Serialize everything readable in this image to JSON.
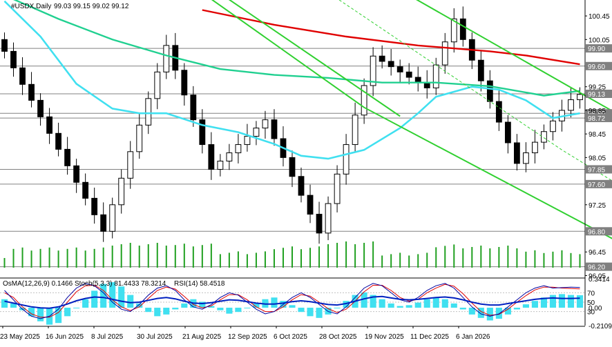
{
  "header": {
    "symbol": "#USDX,Daily",
    "ohlc": "99.03 99.15 99.02 99.12"
  },
  "indicator_header": {
    "osma": "OsMA(12,26,9) 0.1466",
    "stoch": "Stoch(5,3,3) 81.4433 78.3214",
    "rsi": "RSI(14) 58.4518"
  },
  "colors": {
    "candle": "#000000",
    "ma_red": "#e00000",
    "ma_teal": "#20d090",
    "ma_cyan": "#40e0f0",
    "channel": "#30d030",
    "trend_dark": "#208020",
    "level_line": "#808080",
    "volume": "#20a020",
    "osma_bars": "#40e0f0",
    "stoch_main": "#0000a0",
    "stoch_signal": "#e00000",
    "rsi": "#0020c0",
    "label_bg": "#808080",
    "label_text": "#ffffff"
  },
  "chart_data": [
    {
      "type": "line",
      "title": "#USDX,Daily",
      "ylim": [
        96.02,
        100.72
      ],
      "y_ticks": [
        {
          "value": 100.45,
          "label": "100.45"
        },
        {
          "value": 100.05,
          "label": "100.05"
        },
        {
          "value": 99.25,
          "label": "99.25"
        },
        {
          "value": 98.85,
          "label": "98.85"
        },
        {
          "value": 98.45,
          "label": "98.45"
        },
        {
          "value": 98.05,
          "label": "98.05"
        },
        {
          "value": 97.25,
          "label": "97.25"
        },
        {
          "value": 96.45,
          "label": "96.45"
        },
        {
          "value": 96.05,
          "label": "96.05"
        }
      ],
      "levels": [
        {
          "value": 99.9,
          "label": "99.90"
        },
        {
          "value": 99.6,
          "label": "99.60"
        },
        {
          "value": 99.13,
          "label": "99.13"
        },
        {
          "value": 98.8,
          "label": "98.80"
        },
        {
          "value": 98.72,
          "label": "98.72"
        },
        {
          "value": 97.85,
          "label": "97.85"
        },
        {
          "value": 97.6,
          "label": "97.60"
        },
        {
          "value": 96.8,
          "label": "96.80"
        },
        {
          "value": 96.2,
          "label": "96.20"
        }
      ],
      "x_ticks": [
        "23 May 2025",
        "16 Jun 2025",
        "8 Jul 2025",
        "30 Jul 2025",
        "21 Aug 2025",
        "12 Sep 2025",
        "6 Oct 2025",
        "28 Oct 2025",
        "19 Nov 2025",
        "11 Dec 2025",
        "6 Jan 2026"
      ],
      "closes": [
        99.85,
        99.57,
        99.29,
        99.02,
        98.74,
        98.46,
        98.19,
        97.91,
        97.63,
        97.36,
        97.08,
        96.8,
        97.25,
        97.7,
        98.15,
        98.6,
        99.05,
        99.5,
        99.95,
        99.53,
        99.11,
        98.69,
        98.27,
        97.85,
        97.99,
        98.13,
        98.27,
        98.41,
        98.55,
        98.69,
        98.37,
        98.05,
        97.73,
        97.41,
        97.09,
        96.77,
        97.27,
        97.77,
        98.27,
        98.77,
        99.27,
        99.77,
        99.68,
        99.59,
        99.5,
        99.41,
        99.32,
        99.23,
        99.62,
        100.01,
        100.4,
        100.05,
        99.7,
        99.35,
        99.0,
        98.65,
        98.3,
        97.95,
        98.13,
        98.31,
        98.49,
        98.67,
        98.85,
        99.03,
        99.12
      ],
      "series": [
        {
          "name": "",
          "role": "ma-red",
          "points": [
            [
              22,
              100.55
            ],
            [
              30,
              100.3
            ],
            [
              38,
              100.1
            ],
            [
              46,
              99.95
            ],
            [
              54,
              99.85
            ],
            [
              58,
              99.78
            ],
            [
              64,
              99.63
            ]
          ]
        },
        {
          "name": "",
          "role": "ma-teal",
          "points": [
            [
              0,
              100.8
            ],
            [
              6,
              100.4
            ],
            [
              12,
              100.05
            ],
            [
              18,
              99.78
            ],
            [
              24,
              99.55
            ],
            [
              30,
              99.45
            ],
            [
              36,
              99.4
            ],
            [
              42,
              99.32
            ],
            [
              48,
              99.32
            ],
            [
              54,
              99.26
            ],
            [
              60,
              99.1
            ],
            [
              64,
              99.18
            ]
          ]
        },
        {
          "name": "",
          "role": "ma-cyan",
          "points": [
            [
              0,
              100.7
            ],
            [
              4,
              100.1
            ],
            [
              8,
              99.3
            ],
            [
              12,
              98.88
            ],
            [
              15,
              98.8
            ],
            [
              18,
              98.8
            ],
            [
              22,
              98.6
            ],
            [
              26,
              98.48
            ],
            [
              30,
              98.28
            ],
            [
              33,
              98.08
            ],
            [
              36,
              98.03
            ],
            [
              40,
              98.18
            ],
            [
              44,
              98.55
            ],
            [
              46,
              98.8
            ],
            [
              48,
              99.08
            ],
            [
              52,
              99.25
            ],
            [
              55,
              99.2
            ],
            [
              58,
              99.02
            ],
            [
              61,
              98.72
            ],
            [
              64,
              98.8
            ]
          ]
        },
        {
          "name": "",
          "role": "channel",
          "points": [
            [
              45,
              100.8
            ],
            [
              64,
              99.15
            ],
            [
              82,
              97.6
            ]
          ]
        },
        {
          "name": "",
          "role": "channel",
          "points": [
            [
              21,
              100.95
            ],
            [
              40,
              98.9
            ],
            [
              76,
              96.0
            ]
          ]
        },
        {
          "name": "",
          "role": "channel",
          "points": [
            [
              19,
              101.35
            ],
            [
              44,
              98.75
            ]
          ]
        },
        {
          "name": "",
          "role": "trend-dashed",
          "points": [
            [
              35,
              100.95
            ],
            [
              62,
              98.18
            ],
            [
              81,
              96.4
            ]
          ]
        }
      ]
    },
    {
      "type": "bar",
      "title": "",
      "ylim": [
        -0.2109,
        0.3414
      ],
      "y_ticks": [
        {
          "value": 0.3414,
          "label": "0.3414"
        },
        {
          "value": 0.0,
          "label": "0.00"
        },
        {
          "value": -0.2109,
          "label": "-0.2109"
        }
      ],
      "rsi_stoch_ticks": [
        {
          "value": 70,
          "label": "70"
        },
        {
          "value": 50,
          "label": "50"
        },
        {
          "value": 30,
          "label": "30"
        }
      ],
      "osma_values": [
        0.1,
        0.05,
        -0.03,
        -0.1,
        -0.16,
        -0.2,
        -0.18,
        -0.1,
        0.0,
        0.1,
        0.2,
        0.28,
        0.3,
        0.25,
        0.15,
        0.05,
        -0.05,
        -0.1,
        -0.08,
        -0.02,
        0.05,
        0.1,
        0.07,
        0.02,
        -0.03,
        -0.07,
        -0.05,
        0.0,
        0.05,
        0.1,
        0.12,
        0.08,
        0.03,
        -0.05,
        -0.1,
        -0.12,
        -0.08,
        0.0,
        0.08,
        0.15,
        0.18,
        0.15,
        0.1,
        0.05,
        0.02,
        0.03,
        0.06,
        0.1,
        0.12,
        0.1,
        0.05,
        -0.02,
        -0.08,
        -0.12,
        -0.15,
        -0.13,
        -0.08,
        -0.02,
        0.04,
        0.08,
        0.12,
        0.15,
        0.16,
        0.15,
        0.1466
      ],
      "stoch_main": [
        75,
        55,
        35,
        20,
        15,
        20,
        35,
        60,
        80,
        90,
        85,
        70,
        50,
        35,
        30,
        45,
        65,
        80,
        85,
        75,
        55,
        40,
        35,
        45,
        60,
        70,
        65,
        50,
        35,
        25,
        30,
        45,
        60,
        70,
        60,
        45,
        30,
        25,
        40,
        60,
        80,
        90,
        85,
        70,
        55,
        50,
        60,
        75,
        85,
        90,
        80,
        60,
        40,
        25,
        20,
        25,
        40,
        55,
        70,
        80,
        85,
        80,
        81,
        82,
        81.4433
      ],
      "stoch_signal": [
        70,
        60,
        40,
        25,
        18,
        18,
        28,
        50,
        72,
        85,
        86,
        75,
        55,
        40,
        32,
        40,
        58,
        75,
        82,
        78,
        62,
        45,
        38,
        42,
        55,
        66,
        66,
        55,
        40,
        30,
        30,
        40,
        55,
        66,
        63,
        50,
        36,
        28,
        35,
        52,
        72,
        86,
        86,
        75,
        60,
        52,
        56,
        70,
        80,
        88,
        84,
        68,
        48,
        30,
        22,
        24,
        35,
        50,
        64,
        76,
        82,
        82,
        80,
        79,
        78.3214
      ],
      "rsi": [
        52,
        48,
        44,
        40,
        38,
        37,
        40,
        46,
        53,
        58,
        61,
        60,
        56,
        52,
        49,
        50,
        54,
        58,
        60,
        57,
        52,
        48,
        47,
        49,
        52,
        55,
        54,
        51,
        48,
        46,
        46,
        48,
        51,
        53,
        51,
        48,
        45,
        44,
        47,
        52,
        57,
        61,
        62,
        59,
        56,
        55,
        56,
        58,
        60,
        61,
        59,
        55,
        50,
        46,
        44,
        44,
        47,
        50,
        53,
        56,
        58,
        59,
        58,
        58,
        58.4518
      ]
    }
  ]
}
